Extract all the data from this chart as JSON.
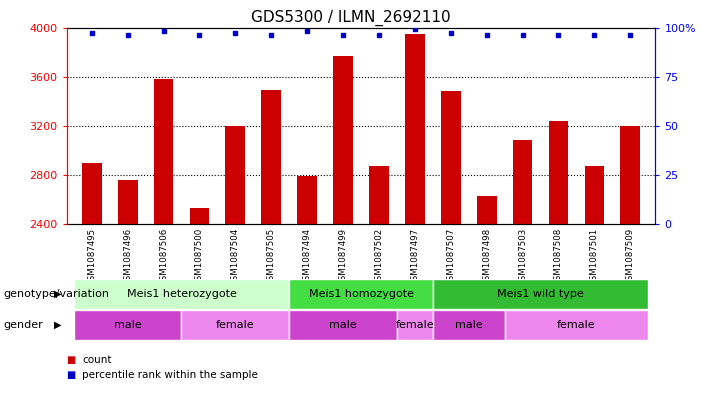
{
  "title": "GDS5300 / ILMN_2692110",
  "samples": [
    "GSM1087495",
    "GSM1087496",
    "GSM1087506",
    "GSM1087500",
    "GSM1087504",
    "GSM1087505",
    "GSM1087494",
    "GSM1087499",
    "GSM1087502",
    "GSM1087497",
    "GSM1087507",
    "GSM1087498",
    "GSM1087503",
    "GSM1087508",
    "GSM1087501",
    "GSM1087509"
  ],
  "counts": [
    2900,
    2760,
    3580,
    2530,
    3200,
    3490,
    2790,
    3770,
    2870,
    3950,
    3480,
    2630,
    3080,
    3240,
    2870,
    3200
  ],
  "percentiles": [
    97,
    96,
    98,
    96,
    97,
    96,
    98,
    96,
    96,
    99,
    97,
    96,
    96,
    96,
    96,
    96
  ],
  "ylim_left": [
    2400,
    4000
  ],
  "ylim_right": [
    0,
    100
  ],
  "yticks_left": [
    2400,
    2800,
    3200,
    3600,
    4000
  ],
  "yticks_right": [
    0,
    25,
    50,
    75,
    100
  ],
  "ytick_labels_right": [
    "0",
    "25",
    "50",
    "75",
    "100%"
  ],
  "bar_color": "#cc0000",
  "dot_color": "#0000cc",
  "background_color": "#ffffff",
  "tick_label_bg": "#c8c8c8",
  "genotype_groups": [
    {
      "label": "Meis1 heterozygote",
      "start": 0,
      "end": 5,
      "color": "#ccffcc"
    },
    {
      "label": "Meis1 homozygote",
      "start": 6,
      "end": 9,
      "color": "#44dd44"
    },
    {
      "label": "Meis1 wild type",
      "start": 10,
      "end": 15,
      "color": "#33bb33"
    }
  ],
  "gender_groups": [
    {
      "label": "male",
      "start": 0,
      "end": 2,
      "color": "#cc44cc"
    },
    {
      "label": "female",
      "start": 3,
      "end": 5,
      "color": "#ee88ee"
    },
    {
      "label": "male",
      "start": 6,
      "end": 8,
      "color": "#cc44cc"
    },
    {
      "label": "female",
      "start": 9,
      "end": 9,
      "color": "#ee88ee"
    },
    {
      "label": "male",
      "start": 10,
      "end": 11,
      "color": "#cc44cc"
    },
    {
      "label": "female",
      "start": 12,
      "end": 15,
      "color": "#ee88ee"
    }
  ],
  "legend_count_label": "count",
  "legend_pct_label": "percentile rank within the sample",
  "genotype_label": "genotype/variation",
  "gender_label": "gender",
  "title_fontsize": 11,
  "tick_fontsize": 8,
  "label_fontsize": 8,
  "group_fontsize": 8
}
